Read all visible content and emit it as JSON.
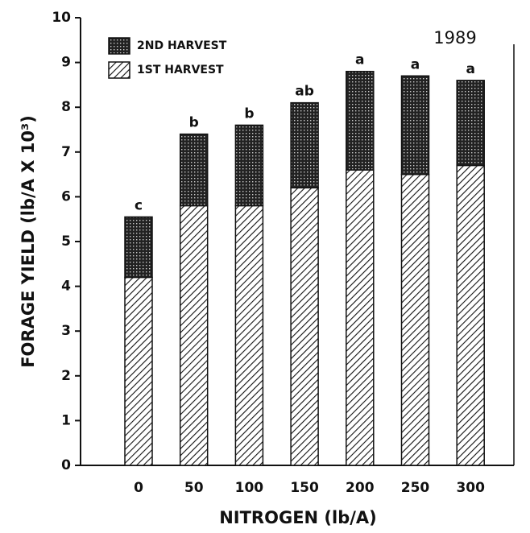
{
  "chart_data": {
    "type": "stacked-bar",
    "annotation": "1989",
    "x_label": "NITROGEN (lb/A)",
    "y_label": "FORAGE YIELD (lb/A X 10³)",
    "categories": [
      "0",
      "50",
      "100",
      "150",
      "200",
      "250",
      "300"
    ],
    "series": [
      {
        "name": "1ST HARVEST",
        "values": [
          4.2,
          5.8,
          5.8,
          6.2,
          6.6,
          6.5,
          6.7
        ]
      },
      {
        "name": "2ND HARVEST",
        "values": [
          1.35,
          1.6,
          1.8,
          1.9,
          2.2,
          2.2,
          1.9
        ]
      }
    ],
    "bar_labels": [
      "c",
      "b",
      "b",
      "ab",
      "a",
      "a",
      "a"
    ],
    "ylim": [
      0,
      10
    ],
    "yticks": [
      0,
      1,
      2,
      3,
      4,
      5,
      6,
      7,
      8,
      9,
      10
    ],
    "grid": false
  }
}
